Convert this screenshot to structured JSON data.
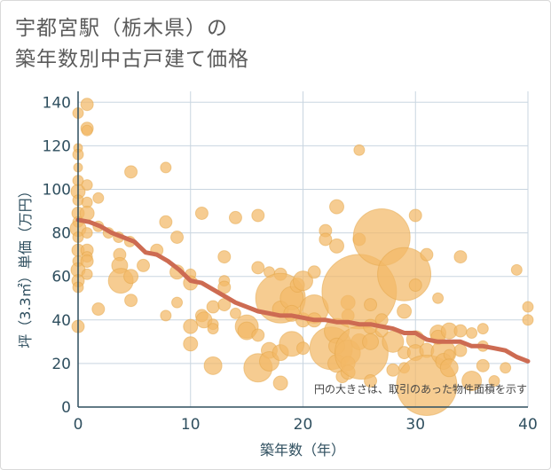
{
  "title_lines": [
    "宇都宮駅（栃木県）の",
    "築年数別中古戸建て価格"
  ],
  "note": "円の大きさは、取引のあった物件面積を示す",
  "colors": {
    "bubble": "#f2b866",
    "bubble_stroke": "#e4a547",
    "trend": "#cd6b52",
    "grid": "#c9d5e0",
    "axis": "#2f4f5f"
  },
  "chart_data": {
    "type": "scatter",
    "xlabel": "築年数（年）",
    "ylabel": "坪（3.3㎡）単価（万円）",
    "xlim": [
      0,
      40
    ],
    "ylim": [
      0,
      145
    ],
    "xticks": [
      0,
      10,
      20,
      30,
      40
    ],
    "yticks": [
      0,
      20,
      40,
      60,
      80,
      100,
      120,
      140
    ],
    "grid": true,
    "points": [
      {
        "x": 0,
        "y": 135,
        "s": 6
      },
      {
        "x": 0,
        "y": 119,
        "s": 5
      },
      {
        "x": 0,
        "y": 116,
        "s": 6
      },
      {
        "x": 0,
        "y": 110,
        "s": 5
      },
      {
        "x": 0,
        "y": 104,
        "s": 6
      },
      {
        "x": 0,
        "y": 99,
        "s": 8
      },
      {
        "x": 0,
        "y": 95,
        "s": 6
      },
      {
        "x": 0,
        "y": 89,
        "s": 7
      },
      {
        "x": 0,
        "y": 85,
        "s": 6
      },
      {
        "x": 0,
        "y": 82,
        "s": 9
      },
      {
        "x": 0,
        "y": 78,
        "s": 6
      },
      {
        "x": 0,
        "y": 72,
        "s": 7
      },
      {
        "x": 0,
        "y": 67,
        "s": 6
      },
      {
        "x": 0,
        "y": 63,
        "s": 8
      },
      {
        "x": 0,
        "y": 58,
        "s": 7
      },
      {
        "x": 0,
        "y": 55,
        "s": 6
      },
      {
        "x": 0,
        "y": 37,
        "s": 7
      },
      {
        "x": 0.8,
        "y": 139,
        "s": 7
      },
      {
        "x": 0.8,
        "y": 128,
        "s": 7
      },
      {
        "x": 0.8,
        "y": 127,
        "s": 6
      },
      {
        "x": 0.8,
        "y": 102,
        "s": 6
      },
      {
        "x": 0.8,
        "y": 94,
        "s": 6
      },
      {
        "x": 0.8,
        "y": 89,
        "s": 8
      },
      {
        "x": 0.8,
        "y": 80,
        "s": 6
      },
      {
        "x": 0.8,
        "y": 72,
        "s": 7
      },
      {
        "x": 0.8,
        "y": 69,
        "s": 6
      },
      {
        "x": 0.8,
        "y": 67,
        "s": 7
      },
      {
        "x": 0.8,
        "y": 61,
        "s": 6
      },
      {
        "x": 1.8,
        "y": 96,
        "s": 6
      },
      {
        "x": 1.8,
        "y": 83,
        "s": 6
      },
      {
        "x": 1.8,
        "y": 45,
        "s": 7
      },
      {
        "x": 2.7,
        "y": 80,
        "s": 6
      },
      {
        "x": 3.6,
        "y": 78,
        "s": 6
      },
      {
        "x": 3.7,
        "y": 70,
        "s": 7
      },
      {
        "x": 3.7,
        "y": 65,
        "s": 9
      },
      {
        "x": 3.8,
        "y": 58,
        "s": 14
      },
      {
        "x": 4.7,
        "y": 108,
        "s": 7
      },
      {
        "x": 4.6,
        "y": 76,
        "s": 6
      },
      {
        "x": 4.7,
        "y": 60,
        "s": 8
      },
      {
        "x": 4.7,
        "y": 49,
        "s": 7
      },
      {
        "x": 5.8,
        "y": 65,
        "s": 7
      },
      {
        "x": 7.0,
        "y": 72,
        "s": 7
      },
      {
        "x": 7.8,
        "y": 110,
        "s": 6
      },
      {
        "x": 7.8,
        "y": 85,
        "s": 7
      },
      {
        "x": 7.8,
        "y": 42,
        "s": 6
      },
      {
        "x": 8.8,
        "y": 78,
        "s": 7
      },
      {
        "x": 8.8,
        "y": 62,
        "s": 8
      },
      {
        "x": 8.8,
        "y": 48,
        "s": 6
      },
      {
        "x": 10.0,
        "y": 61,
        "s": 6
      },
      {
        "x": 10.0,
        "y": 57,
        "s": 8
      },
      {
        "x": 10.0,
        "y": 37,
        "s": 8
      },
      {
        "x": 10.0,
        "y": 29,
        "s": 8
      },
      {
        "x": 11.0,
        "y": 89,
        "s": 7
      },
      {
        "x": 11.0,
        "y": 42,
        "s": 7
      },
      {
        "x": 11.2,
        "y": 40,
        "s": 9
      },
      {
        "x": 12.0,
        "y": 46,
        "s": 7
      },
      {
        "x": 12.0,
        "y": 38,
        "s": 6
      },
      {
        "x": 12.0,
        "y": 36,
        "s": 6
      },
      {
        "x": 12.0,
        "y": 19,
        "s": 10
      },
      {
        "x": 13.0,
        "y": 69,
        "s": 7
      },
      {
        "x": 13.0,
        "y": 58,
        "s": 6
      },
      {
        "x": 13.0,
        "y": 55,
        "s": 7
      },
      {
        "x": 13.0,
        "y": 47,
        "s": 7
      },
      {
        "x": 14.0,
        "y": 87,
        "s": 7
      },
      {
        "x": 14.0,
        "y": 43,
        "s": 6
      },
      {
        "x": 15.0,
        "y": 37,
        "s": 13
      },
      {
        "x": 15.0,
        "y": 35,
        "s": 10
      },
      {
        "x": 16.0,
        "y": 88,
        "s": 7
      },
      {
        "x": 16.0,
        "y": 64,
        "s": 7
      },
      {
        "x": 16.0,
        "y": 33,
        "s": 7
      },
      {
        "x": 16.0,
        "y": 18,
        "s": 16
      },
      {
        "x": 17.0,
        "y": 62,
        "s": 6
      },
      {
        "x": 17.0,
        "y": 26,
        "s": 9
      },
      {
        "x": 17.0,
        "y": 21,
        "s": 11
      },
      {
        "x": 18.0,
        "y": 61,
        "s": 7
      },
      {
        "x": 18.0,
        "y": 50,
        "s": 28
      },
      {
        "x": 18.0,
        "y": 45,
        "s": 9
      },
      {
        "x": 18.0,
        "y": 25,
        "s": 9
      },
      {
        "x": 18.0,
        "y": 11,
        "s": 8
      },
      {
        "x": 19.0,
        "y": 50,
        "s": 13
      },
      {
        "x": 19.0,
        "y": 43,
        "s": 9
      },
      {
        "x": 19.0,
        "y": 29,
        "s": 14
      },
      {
        "x": 19.5,
        "y": 56,
        "s": 8
      },
      {
        "x": 20.0,
        "y": 58,
        "s": 11
      },
      {
        "x": 20.0,
        "y": 40,
        "s": 8
      },
      {
        "x": 20.0,
        "y": 27,
        "s": 7
      },
      {
        "x": 21.0,
        "y": 62,
        "s": 7
      },
      {
        "x": 21.0,
        "y": 45,
        "s": 16
      },
      {
        "x": 21.0,
        "y": 40,
        "s": 8
      },
      {
        "x": 22.0,
        "y": 81,
        "s": 7
      },
      {
        "x": 22.0,
        "y": 77,
        "s": 7
      },
      {
        "x": 22.5,
        "y": 27,
        "s": 24
      },
      {
        "x": 23.0,
        "y": 92,
        "s": 8
      },
      {
        "x": 23.0,
        "y": 74,
        "s": 8
      },
      {
        "x": 23.0,
        "y": 35,
        "s": 14
      },
      {
        "x": 23.0,
        "y": 28,
        "s": 9
      },
      {
        "x": 23.0,
        "y": 20,
        "s": 10
      },
      {
        "x": 23.5,
        "y": 14,
        "s": 7
      },
      {
        "x": 24.0,
        "y": 48,
        "s": 8
      },
      {
        "x": 24.0,
        "y": 42,
        "s": 7
      },
      {
        "x": 24.0,
        "y": 25,
        "s": 14
      },
      {
        "x": 24.0,
        "y": 20,
        "s": 8
      },
      {
        "x": 24.0,
        "y": 16,
        "s": 8
      },
      {
        "x": 25.0,
        "y": 118,
        "s": 6
      },
      {
        "x": 25.0,
        "y": 77,
        "s": 7
      },
      {
        "x": 25.0,
        "y": 53,
        "s": 42
      },
      {
        "x": 25.0,
        "y": 30,
        "s": 9
      },
      {
        "x": 25.2,
        "y": 25,
        "s": 30
      },
      {
        "x": 26.0,
        "y": 47,
        "s": 7
      },
      {
        "x": 26.0,
        "y": 37,
        "s": 8
      },
      {
        "x": 26.0,
        "y": 30,
        "s": 9
      },
      {
        "x": 26.0,
        "y": 12,
        "s": 7
      },
      {
        "x": 27.0,
        "y": 78,
        "s": 32
      },
      {
        "x": 27.0,
        "y": 40,
        "s": 7
      },
      {
        "x": 27.0,
        "y": 35,
        "s": 7
      },
      {
        "x": 28.0,
        "y": 30,
        "s": 12
      },
      {
        "x": 28.0,
        "y": 17,
        "s": 7
      },
      {
        "x": 29.0,
        "y": 61,
        "s": 30
      },
      {
        "x": 29.0,
        "y": 44,
        "s": 8
      },
      {
        "x": 29.0,
        "y": 25,
        "s": 7
      },
      {
        "x": 29.0,
        "y": 18,
        "s": 6
      },
      {
        "x": 30.0,
        "y": 88,
        "s": 7
      },
      {
        "x": 30.0,
        "y": 56,
        "s": 7
      },
      {
        "x": 30.0,
        "y": 31,
        "s": 10
      },
      {
        "x": 30.0,
        "y": 25,
        "s": 9
      },
      {
        "x": 31.0,
        "y": 70,
        "s": 7
      },
      {
        "x": 31.0,
        "y": 26,
        "s": 8
      },
      {
        "x": 31.0,
        "y": 10,
        "s": 34
      },
      {
        "x": 32.0,
        "y": 50,
        "s": 6
      },
      {
        "x": 32.0,
        "y": 34,
        "s": 9
      },
      {
        "x": 32.0,
        "y": 32,
        "s": 8
      },
      {
        "x": 32.5,
        "y": 25,
        "s": 14
      },
      {
        "x": 32.5,
        "y": 21,
        "s": 9
      },
      {
        "x": 33.0,
        "y": 35,
        "s": 9
      },
      {
        "x": 33.0,
        "y": 24,
        "s": 6
      },
      {
        "x": 33.0,
        "y": 18,
        "s": 10
      },
      {
        "x": 34.0,
        "y": 69,
        "s": 7
      },
      {
        "x": 34.0,
        "y": 35,
        "s": 7
      },
      {
        "x": 34.0,
        "y": 26,
        "s": 7
      },
      {
        "x": 35.0,
        "y": 34,
        "s": 6
      },
      {
        "x": 35.0,
        "y": 12,
        "s": 11
      },
      {
        "x": 36.0,
        "y": 36,
        "s": 6
      },
      {
        "x": 36.0,
        "y": 28,
        "s": 6
      },
      {
        "x": 36.0,
        "y": 19,
        "s": 7
      },
      {
        "x": 37.0,
        "y": 12,
        "s": 6
      },
      {
        "x": 38.0,
        "y": 18,
        "s": 6
      },
      {
        "x": 39.0,
        "y": 63,
        "s": 6
      },
      {
        "x": 40.0,
        "y": 46,
        "s": 6
      },
      {
        "x": 40.0,
        "y": 40,
        "s": 6
      }
    ],
    "trend": {
      "x": [
        0,
        1,
        2,
        3,
        4,
        5,
        6,
        7,
        8,
        9,
        10,
        11,
        12,
        13,
        14,
        15,
        16,
        17,
        18,
        19,
        20,
        21,
        22,
        23,
        24,
        25,
        26,
        27,
        28,
        29,
        30,
        31,
        32,
        33,
        34,
        35,
        36,
        37,
        38,
        39,
        40
      ],
      "y": [
        86,
        85,
        83,
        80,
        78,
        76,
        71,
        70,
        67,
        63,
        58,
        57,
        54,
        51,
        48,
        46,
        44,
        43,
        42,
        42,
        41,
        40,
        40,
        39,
        39,
        38,
        38,
        37,
        36,
        34,
        34,
        31,
        30,
        30,
        30,
        28,
        28,
        27,
        26,
        23,
        21
      ]
    }
  }
}
